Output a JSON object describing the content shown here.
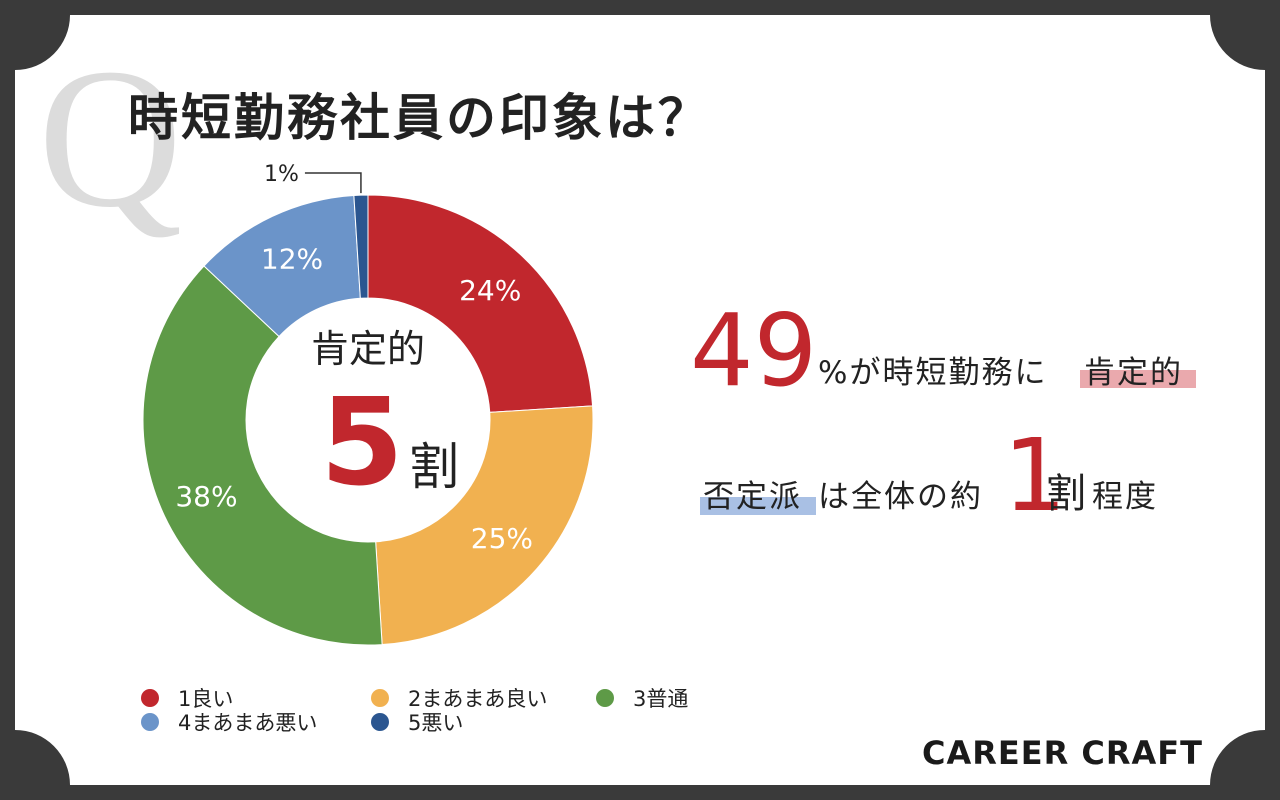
{
  "chart_data": {
    "type": "pie",
    "donut": true,
    "title": "時短勤務社員の印象は？",
    "categories": [
      "1良い",
      "2まあまあ良い",
      "3普通",
      "4まあまあ悪い",
      "5悪い"
    ],
    "values": [
      24,
      25,
      38,
      12,
      1
    ],
    "value_labels": [
      "24%",
      "25%",
      "38%",
      "12%",
      "1%"
    ],
    "colors": [
      "#c1272d",
      "#f1b150",
      "#5e9a47",
      "#6b94c9",
      "#2b5690"
    ],
    "center_text": {
      "label": "肯定的",
      "number": "5",
      "unit": "割"
    }
  },
  "decoration": "Q",
  "annotations": {
    "line1": {
      "number": "49",
      "text": "%が時短勤務に",
      "highlight": "肯定的"
    },
    "line2": {
      "highlight": "否定派",
      "text": "は全体の約",
      "number": "1",
      "unit": "割",
      "tail": "程度"
    }
  },
  "logo": "CAREER CRAFT"
}
